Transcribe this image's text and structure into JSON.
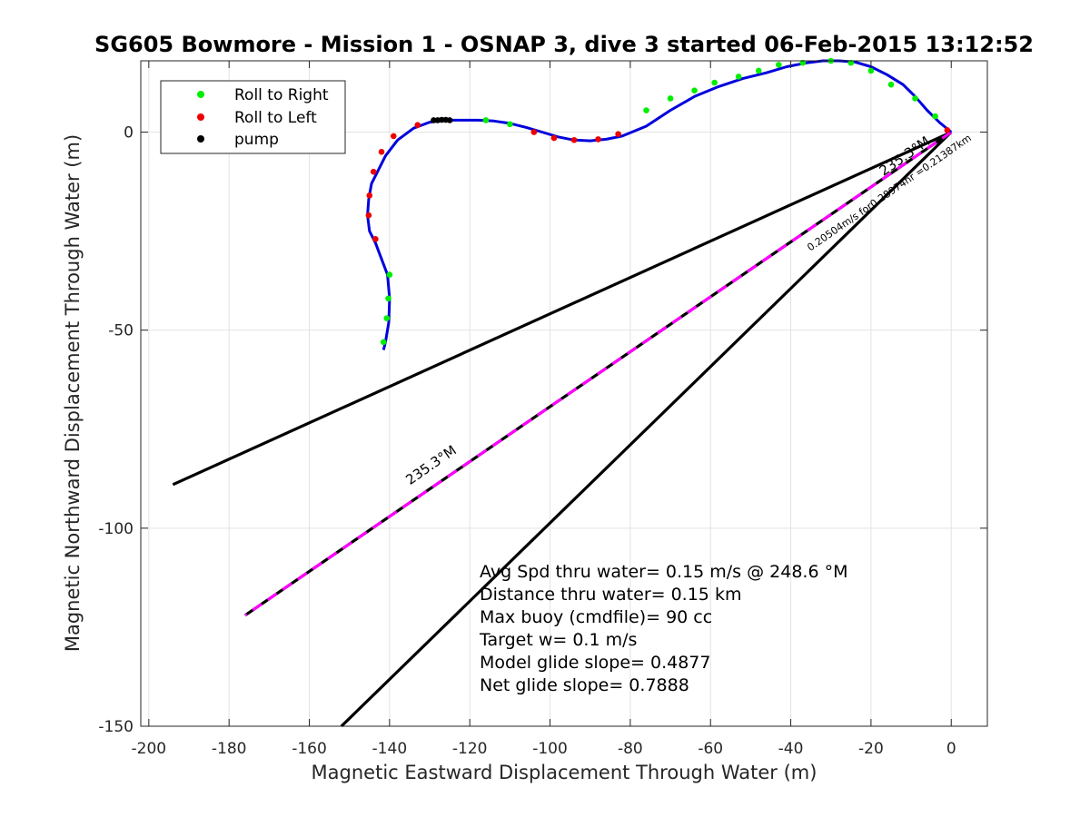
{
  "chart_data": {
    "type": "line",
    "title": "SG605 Bowmore - Mission 1 - OSNAP 3, dive 3 started 06-Feb-2015 13:12:52",
    "xlabel": "Magnetic Eastward Displacement Through Water (m)",
    "ylabel": "Magnetic Northward Displacement Through Water (m)",
    "xlim": [
      -202,
      9
    ],
    "ylim": [
      -150,
      18
    ],
    "x_ticks": [
      -200,
      -180,
      -160,
      -140,
      -120,
      -100,
      -80,
      -60,
      -40,
      -20,
      0
    ],
    "y_ticks": [
      -150,
      -100,
      -50,
      0
    ],
    "grid": true,
    "legend_position": "top-left",
    "legend": [
      {
        "label": "Roll to Right",
        "color": "#00ee00"
      },
      {
        "label": "Roll to Left",
        "color": "#ee0000"
      },
      {
        "label": "pump",
        "color": "#000000"
      }
    ],
    "track": {
      "color": "#0000dd",
      "x": [
        0,
        -3,
        -6,
        -9,
        -12,
        -16,
        -20,
        -24,
        -28,
        -32,
        -36,
        -41,
        -46,
        -52,
        -58,
        -64,
        -70,
        -76,
        -82,
        -86,
        -90,
        -94,
        -98,
        -102,
        -106,
        -110,
        -114,
        -118,
        -122,
        -126,
        -130,
        -134,
        -138,
        -141,
        -143,
        -144.5,
        -145.2,
        -145.5,
        -145,
        -143.5,
        -142,
        -140.5,
        -140,
        -140.2,
        -141,
        -141.5
      ],
      "y": [
        0,
        2.5,
        5.5,
        9,
        12,
        14.5,
        16.5,
        17.7,
        18,
        18,
        17.5,
        16.5,
        15,
        13.5,
        11.5,
        9,
        5.5,
        1.5,
        -1,
        -1.8,
        -2.2,
        -2,
        -1.2,
        0,
        1.2,
        2.2,
        2.8,
        3,
        3,
        3,
        2.5,
        1,
        -2,
        -6,
        -10,
        -13,
        -17,
        -21,
        -25,
        -28,
        -32,
        -36,
        -42,
        -48,
        -53,
        -55
      ]
    },
    "roll_right": {
      "color": "#00ee00",
      "x": [
        -4,
        -9,
        -15,
        -20,
        -25,
        -30,
        -37,
        -43,
        -48,
        -53,
        -59,
        -64,
        -70,
        -76,
        -116,
        -110,
        -140,
        -140.3,
        -140.7,
        -141.5
      ],
      "y": [
        4,
        8.5,
        12,
        15.5,
        17.5,
        18,
        17.5,
        17,
        15.5,
        14,
        12.5,
        10.5,
        8.5,
        5.5,
        3,
        2,
        -36,
        -42,
        -47,
        -53
      ]
    },
    "roll_left": {
      "color": "#ee0000",
      "x": [
        -1,
        -83,
        -88,
        -94,
        -99,
        -104,
        -133,
        -139,
        -142,
        -144,
        -145,
        -145.2,
        -143.5
      ],
      "y": [
        0.5,
        -0.5,
        -1.8,
        -2,
        -1.5,
        0,
        1.8,
        -1,
        -5,
        -10,
        -16,
        -21,
        -27
      ]
    },
    "pump": {
      "color": "#000000",
      "x": [
        -125,
        -126,
        -127,
        -128,
        -129
      ],
      "y": [
        3,
        3.1,
        3.1,
        3,
        3
      ]
    },
    "lines": [
      {
        "name": "",
        "style": "solid",
        "color": "#000000",
        "x": [
          0,
          -194
        ],
        "y": [
          0,
          -89
        ]
      },
      {
        "name": "",
        "style": "solid",
        "color": "#000000",
        "x": [
          0,
          -152
        ],
        "y": [
          0,
          -150
        ]
      },
      {
        "name": "",
        "style": "magenta-black-dashed",
        "color": "#ff00ff",
        "x": [
          0,
          -176
        ],
        "y": [
          0,
          -122
        ]
      }
    ],
    "annotations": [
      {
        "text": "235.3°M",
        "x": -129,
        "y": -85,
        "angle": 34.7
      },
      {
        "text": "235.3°M",
        "x": -11,
        "y": -7,
        "angle": 34.7
      },
      {
        "text": "0.20504m/s for0.28974hr =0.21387km",
        "x": -15,
        "y": -16,
        "angle": 34.7
      }
    ],
    "stats": [
      "Avg Spd thru water=  0.15 m/s @ 248.6 °M",
      "Distance thru water=  0.15 km",
      "Max buoy (cmdfile)= 90 cc",
      "Target w= 0.1 m/s",
      "Model glide slope= 0.4877",
      "Net glide slope= 0.7888"
    ]
  }
}
